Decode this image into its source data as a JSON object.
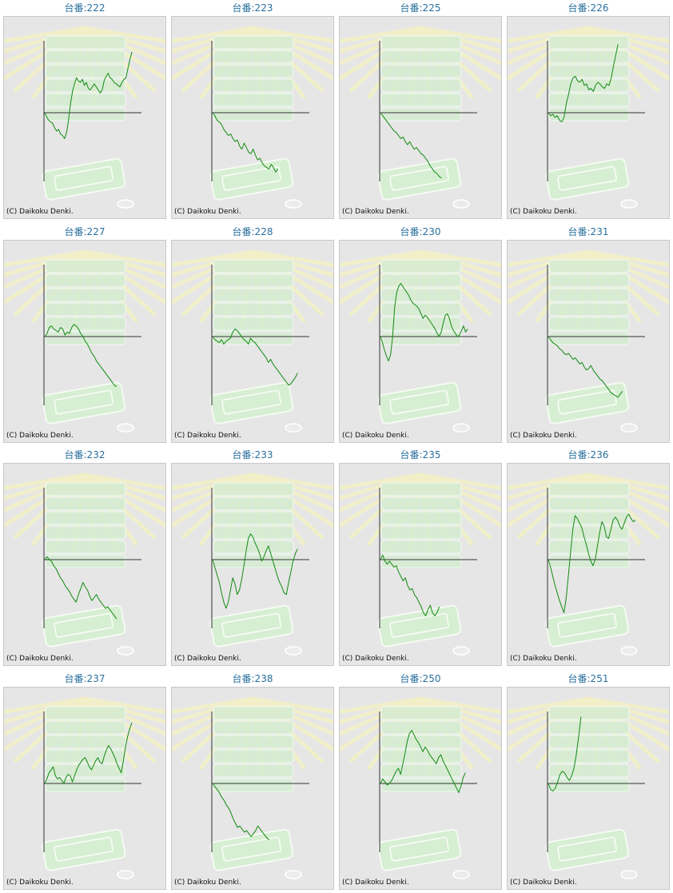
{
  "colors": {
    "title": "#2a6f9e",
    "line": "#118a11",
    "axis": "#333333",
    "background": "#e6e6e6"
  },
  "chart_data": [
    {
      "type": "line",
      "title": "台番:222",
      "credit": "(C) Daikoku Denki.",
      "values": [
        0,
        -6,
        -10,
        -12,
        -14,
        -20,
        -24,
        -22,
        -28,
        -30,
        -34,
        -26,
        -10,
        12,
        28,
        38,
        46,
        42,
        40,
        44,
        36,
        40,
        32,
        30,
        34,
        38,
        34,
        30,
        26,
        30,
        42,
        48,
        52,
        46,
        44,
        40,
        38,
        36,
        34,
        40,
        44,
        46,
        58,
        70,
        80
      ]
    },
    {
      "type": "line",
      "title": "台番:223",
      "credit": "(C) Daikoku Denki.",
      "values": [
        0,
        -4,
        -10,
        -12,
        -16,
        -22,
        -26,
        -30,
        -28,
        -34,
        -38,
        -36,
        -44,
        -48,
        -40,
        -46,
        -52,
        -54,
        -48,
        -56,
        -62,
        -60,
        -66,
        -70,
        -72,
        -74,
        -68,
        -72,
        -78,
        -74
      ]
    },
    {
      "type": "line",
      "title": "台番:225",
      "credit": "(C) Daikoku Denki.",
      "values": [
        0,
        -4,
        -8,
        -12,
        -16,
        -20,
        -24,
        -26,
        -30,
        -34,
        -32,
        -38,
        -42,
        -38,
        -44,
        -48,
        -46,
        -50,
        -54,
        -56,
        -60,
        -64,
        -70,
        -74,
        -78,
        -80,
        -84,
        -86
      ]
    },
    {
      "type": "line",
      "title": "台番:226",
      "credit": "(C) Daikoku Denki.",
      "values": [
        0,
        -4,
        -2,
        -6,
        -4,
        -10,
        -12,
        -6,
        12,
        24,
        38,
        46,
        48,
        42,
        40,
        44,
        36,
        38,
        30,
        32,
        28,
        36,
        40,
        38,
        34,
        32,
        38,
        36,
        46,
        62,
        76,
        90
      ]
    },
    {
      "type": "line",
      "title": "台番:227",
      "credit": "(C) Daikoku Denki.",
      "values": [
        0,
        4,
        12,
        14,
        10,
        8,
        6,
        12,
        10,
        2,
        6,
        4,
        12,
        16,
        14,
        10,
        4,
        0,
        -6,
        -10,
        -16,
        -22,
        -26,
        -32,
        -36,
        -40,
        -44,
        -48,
        -52,
        -56,
        -60,
        -64,
        -66
      ]
    },
    {
      "type": "line",
      "title": "台番:228",
      "credit": "(C) Daikoku Denki.",
      "values": [
        0,
        -4,
        -6,
        -8,
        -4,
        -10,
        -6,
        -4,
        -2,
        6,
        10,
        8,
        4,
        0,
        -4,
        -6,
        -10,
        -2,
        -6,
        -8,
        -12,
        -16,
        -20,
        -24,
        -28,
        -34,
        -30,
        -36,
        -40,
        -44,
        -48,
        -52,
        -56,
        -60,
        -64,
        -62,
        -58,
        -54,
        -48
      ]
    },
    {
      "type": "line",
      "title": "台番:230",
      "credit": "(C) Daikoku Denki.",
      "values": [
        0,
        -8,
        -18,
        -26,
        -32,
        -24,
        0,
        38,
        58,
        66,
        70,
        66,
        62,
        58,
        54,
        48,
        44,
        42,
        40,
        36,
        30,
        24,
        28,
        26,
        22,
        18,
        14,
        10,
        4,
        0,
        6,
        18,
        28,
        30,
        24,
        14,
        8,
        4,
        0,
        2,
        8,
        14,
        6,
        10
      ]
    },
    {
      "type": "line",
      "title": "台番:231",
      "credit": "(C) Daikoku Denki.",
      "values": [
        0,
        -4,
        -8,
        -10,
        -12,
        -16,
        -18,
        -22,
        -24,
        -22,
        -26,
        -30,
        -28,
        -32,
        -36,
        -34,
        -40,
        -44,
        -42,
        -38,
        -44,
        -48,
        -52,
        -56,
        -58,
        -62,
        -66,
        -70,
        -74,
        -76,
        -78,
        -80,
        -76,
        -72
      ]
    },
    {
      "type": "line",
      "title": "台番:232",
      "credit": "(C) Daikoku Denki.",
      "values": [
        0,
        4,
        0,
        -2,
        -8,
        -12,
        -18,
        -24,
        -28,
        -34,
        -38,
        -42,
        -48,
        -52,
        -56,
        -46,
        -38,
        -30,
        -36,
        -40,
        -48,
        -54,
        -50,
        -46,
        -52,
        -56,
        -60,
        -64,
        -62,
        -66,
        -70,
        -74,
        -78
      ]
    },
    {
      "type": "line",
      "title": "台番:233",
      "credit": "(C) Daikoku Denki.",
      "values": [
        0,
        -10,
        -20,
        -30,
        -44,
        -56,
        -64,
        -56,
        -40,
        -24,
        -32,
        -46,
        -40,
        -26,
        -8,
        12,
        28,
        34,
        30,
        22,
        16,
        8,
        -2,
        4,
        12,
        18,
        8,
        -2,
        -12,
        -22,
        -30,
        -36,
        -44,
        -46,
        -30,
        -16,
        -2,
        8,
        14
      ]
    },
    {
      "type": "line",
      "title": "台番:235",
      "credit": "(C) Daikoku Denki.",
      "values": [
        0,
        6,
        -2,
        -6,
        -2,
        -6,
        -10,
        -8,
        -16,
        -22,
        -28,
        -24,
        -34,
        -40,
        -38,
        -46,
        -50,
        -56,
        -62,
        -70,
        -74,
        -66,
        -60,
        -70,
        -74,
        -70,
        -62
      ]
    },
    {
      "type": "line",
      "title": "台番:236",
      "credit": "(C) Daikoku Denki.",
      "values": [
        0,
        -10,
        -22,
        -34,
        -44,
        -54,
        -62,
        -70,
        -50,
        -20,
        10,
        40,
        58,
        54,
        48,
        42,
        30,
        20,
        8,
        -2,
        -8,
        0,
        18,
        36,
        50,
        44,
        30,
        28,
        40,
        52,
        56,
        52,
        44,
        40,
        48,
        56,
        60,
        54,
        50,
        52
      ]
    },
    {
      "type": "line",
      "title": "台番:237",
      "credit": "(C) Daikoku Denki.",
      "values": [
        0,
        6,
        14,
        18,
        22,
        10,
        6,
        8,
        4,
        0,
        8,
        12,
        10,
        2,
        10,
        18,
        24,
        28,
        32,
        34,
        28,
        22,
        18,
        24,
        30,
        34,
        28,
        26,
        36,
        44,
        50,
        46,
        40,
        34,
        26,
        20,
        14,
        30,
        48,
        62,
        72,
        80
      ]
    },
    {
      "type": "line",
      "title": "台番:238",
      "credit": "(C) Daikoku Denki.",
      "values": [
        0,
        -4,
        -8,
        -12,
        -18,
        -22,
        -28,
        -32,
        -38,
        -46,
        -52,
        -58,
        -56,
        -60,
        -64,
        -62,
        -66,
        -70,
        -66,
        -62,
        -56,
        -60,
        -64,
        -68,
        -72,
        -74
      ]
    },
    {
      "type": "line",
      "title": "台番:250",
      "credit": "(C) Daikoku Denki.",
      "values": [
        0,
        6,
        2,
        -2,
        0,
        4,
        10,
        16,
        20,
        12,
        26,
        40,
        56,
        66,
        70,
        64,
        58,
        54,
        48,
        42,
        48,
        44,
        38,
        34,
        30,
        26,
        34,
        38,
        30,
        24,
        18,
        12,
        6,
        0,
        -6,
        -12,
        -4,
        8,
        14
      ]
    },
    {
      "type": "line",
      "title": "台番:251",
      "credit": "(C) Daikoku Denki.",
      "values": [
        0,
        -8,
        -10,
        -6,
        2,
        12,
        16,
        14,
        8,
        4,
        10,
        20,
        38,
        62,
        88
      ]
    }
  ]
}
